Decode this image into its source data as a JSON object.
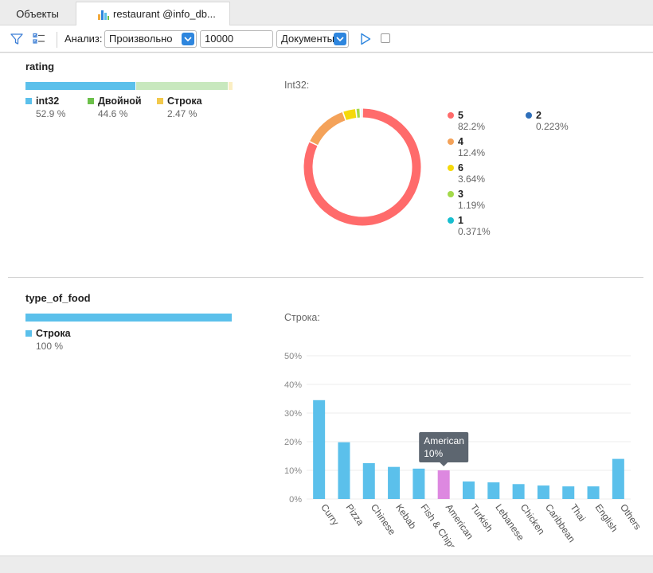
{
  "tabs": [
    {
      "label": "Объекты",
      "active": false
    },
    {
      "label": "restaurant @info_db...",
      "active": true,
      "icon": "bar-chart-icon"
    }
  ],
  "toolbar": {
    "filter_icon": "filter-icon",
    "fields_icon": "field-list-icon",
    "analysis_label": "Анализ:",
    "mode_value": "Произвольно",
    "limit_value": "10000",
    "scope_value": "Документы",
    "run_icon": "play-icon",
    "stop_icon": "stop-checkbox-icon"
  },
  "fields": [
    {
      "name": "rating",
      "types": [
        {
          "label": "int32",
          "percent": "52.9 %",
          "value": 52.9,
          "color": "#5bc0eb"
        },
        {
          "label": "Двойной",
          "percent": "44.6 %",
          "value": 44.6,
          "color": "#6cc04a"
        },
        {
          "label": "Строка",
          "percent": "2.47 %",
          "value": 2.47,
          "color": "#f2c94c"
        }
      ],
      "detail_title": "Int32:",
      "donut": [
        {
          "label": "5",
          "percent": "82.2%",
          "value": 82.2,
          "color": "#ff6b6b"
        },
        {
          "label": "4",
          "percent": "12.4%",
          "value": 12.4,
          "color": "#f4a259"
        },
        {
          "label": "6",
          "percent": "3.64%",
          "value": 3.64,
          "color": "#f5d90a"
        },
        {
          "label": "3",
          "percent": "1.19%",
          "value": 1.19,
          "color": "#a3d94a"
        },
        {
          "label": "1",
          "percent": "0.371%",
          "value": 0.371,
          "color": "#17becf"
        },
        {
          "label": "2",
          "percent": "0.223%",
          "value": 0.223,
          "color": "#2e6fba"
        }
      ]
    },
    {
      "name": "type_of_food",
      "types": [
        {
          "label": "Строка",
          "percent": "100 %",
          "value": 100,
          "color": "#5bc0eb"
        }
      ],
      "detail_title": "Строка:"
    }
  ],
  "chart_data": {
    "type": "bar",
    "categories": [
      "Curry",
      "Pizza",
      "Chinese",
      "Kebab",
      "Fish & Chips",
      "American",
      "Turkish",
      "Lebanese",
      "Chicken",
      "Caribbean",
      "Thai",
      "English",
      "Others"
    ],
    "values": [
      34.5,
      19.8,
      12.5,
      11.2,
      10.6,
      10.0,
      6.1,
      5.8,
      5.2,
      4.7,
      4.4,
      4.4,
      14.0
    ],
    "ylabel": "",
    "xlabel": "",
    "ylim": [
      0,
      40
    ],
    "yticks": [
      "0%",
      "10%",
      "20%",
      "30%",
      "40%",
      "50%"
    ],
    "ytick_values": [
      0,
      10,
      20,
      30,
      40,
      50
    ],
    "grid": true,
    "bar_color": "#5bc0eb",
    "highlight_color": "#dd88e0",
    "highlight_index": 5,
    "tooltip": {
      "title": "American",
      "value": "10%"
    }
  }
}
